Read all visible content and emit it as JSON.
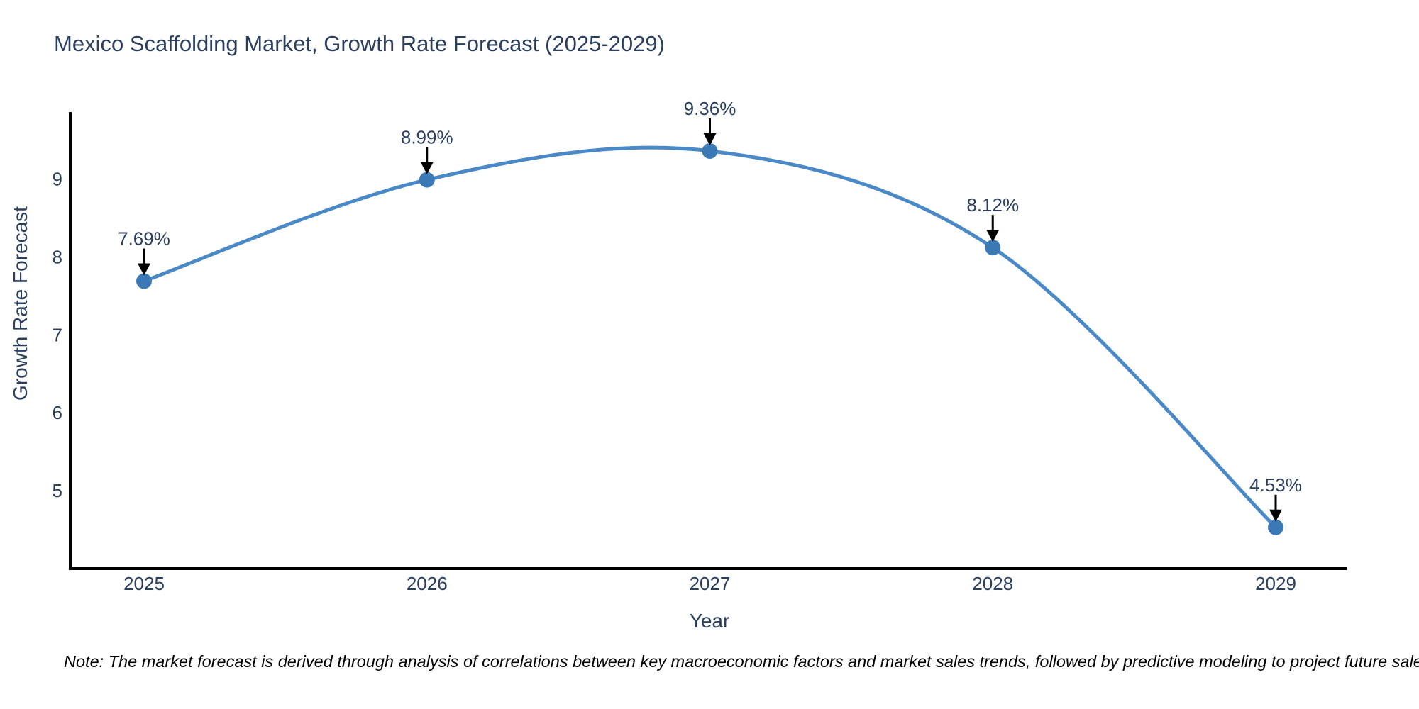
{
  "title": "Mexico Scaffolding Market, Growth Rate Forecast (2025-2029)",
  "note": "Note: The market forecast is derived through analysis of correlations between key macroeconomic factors and market sales trends, followed by predictive modeling to project future sales.",
  "chart_data": {
    "type": "line",
    "title": "Mexico Scaffolding Market, Growth Rate Forecast (2025-2029)",
    "xlabel": "Year",
    "ylabel": "Growth Rate Forecast",
    "categories": [
      2025,
      2026,
      2027,
      2028,
      2029
    ],
    "values": [
      7.69,
      8.99,
      9.36,
      8.12,
      4.53
    ],
    "point_labels": [
      "7.69%",
      "8.99%",
      "9.36%",
      "8.12%",
      "4.53%"
    ],
    "yticks": [
      5,
      6,
      7,
      8,
      9
    ],
    "ylim": [
      4.0,
      9.86
    ],
    "curve": "spline",
    "grid": false,
    "legend": "none",
    "line_color": "#4a89c7",
    "marker_color": "#3a79b5",
    "arrow_color": "#000000",
    "text_color": "#2a3f5f",
    "axis_color": "#000000"
  }
}
